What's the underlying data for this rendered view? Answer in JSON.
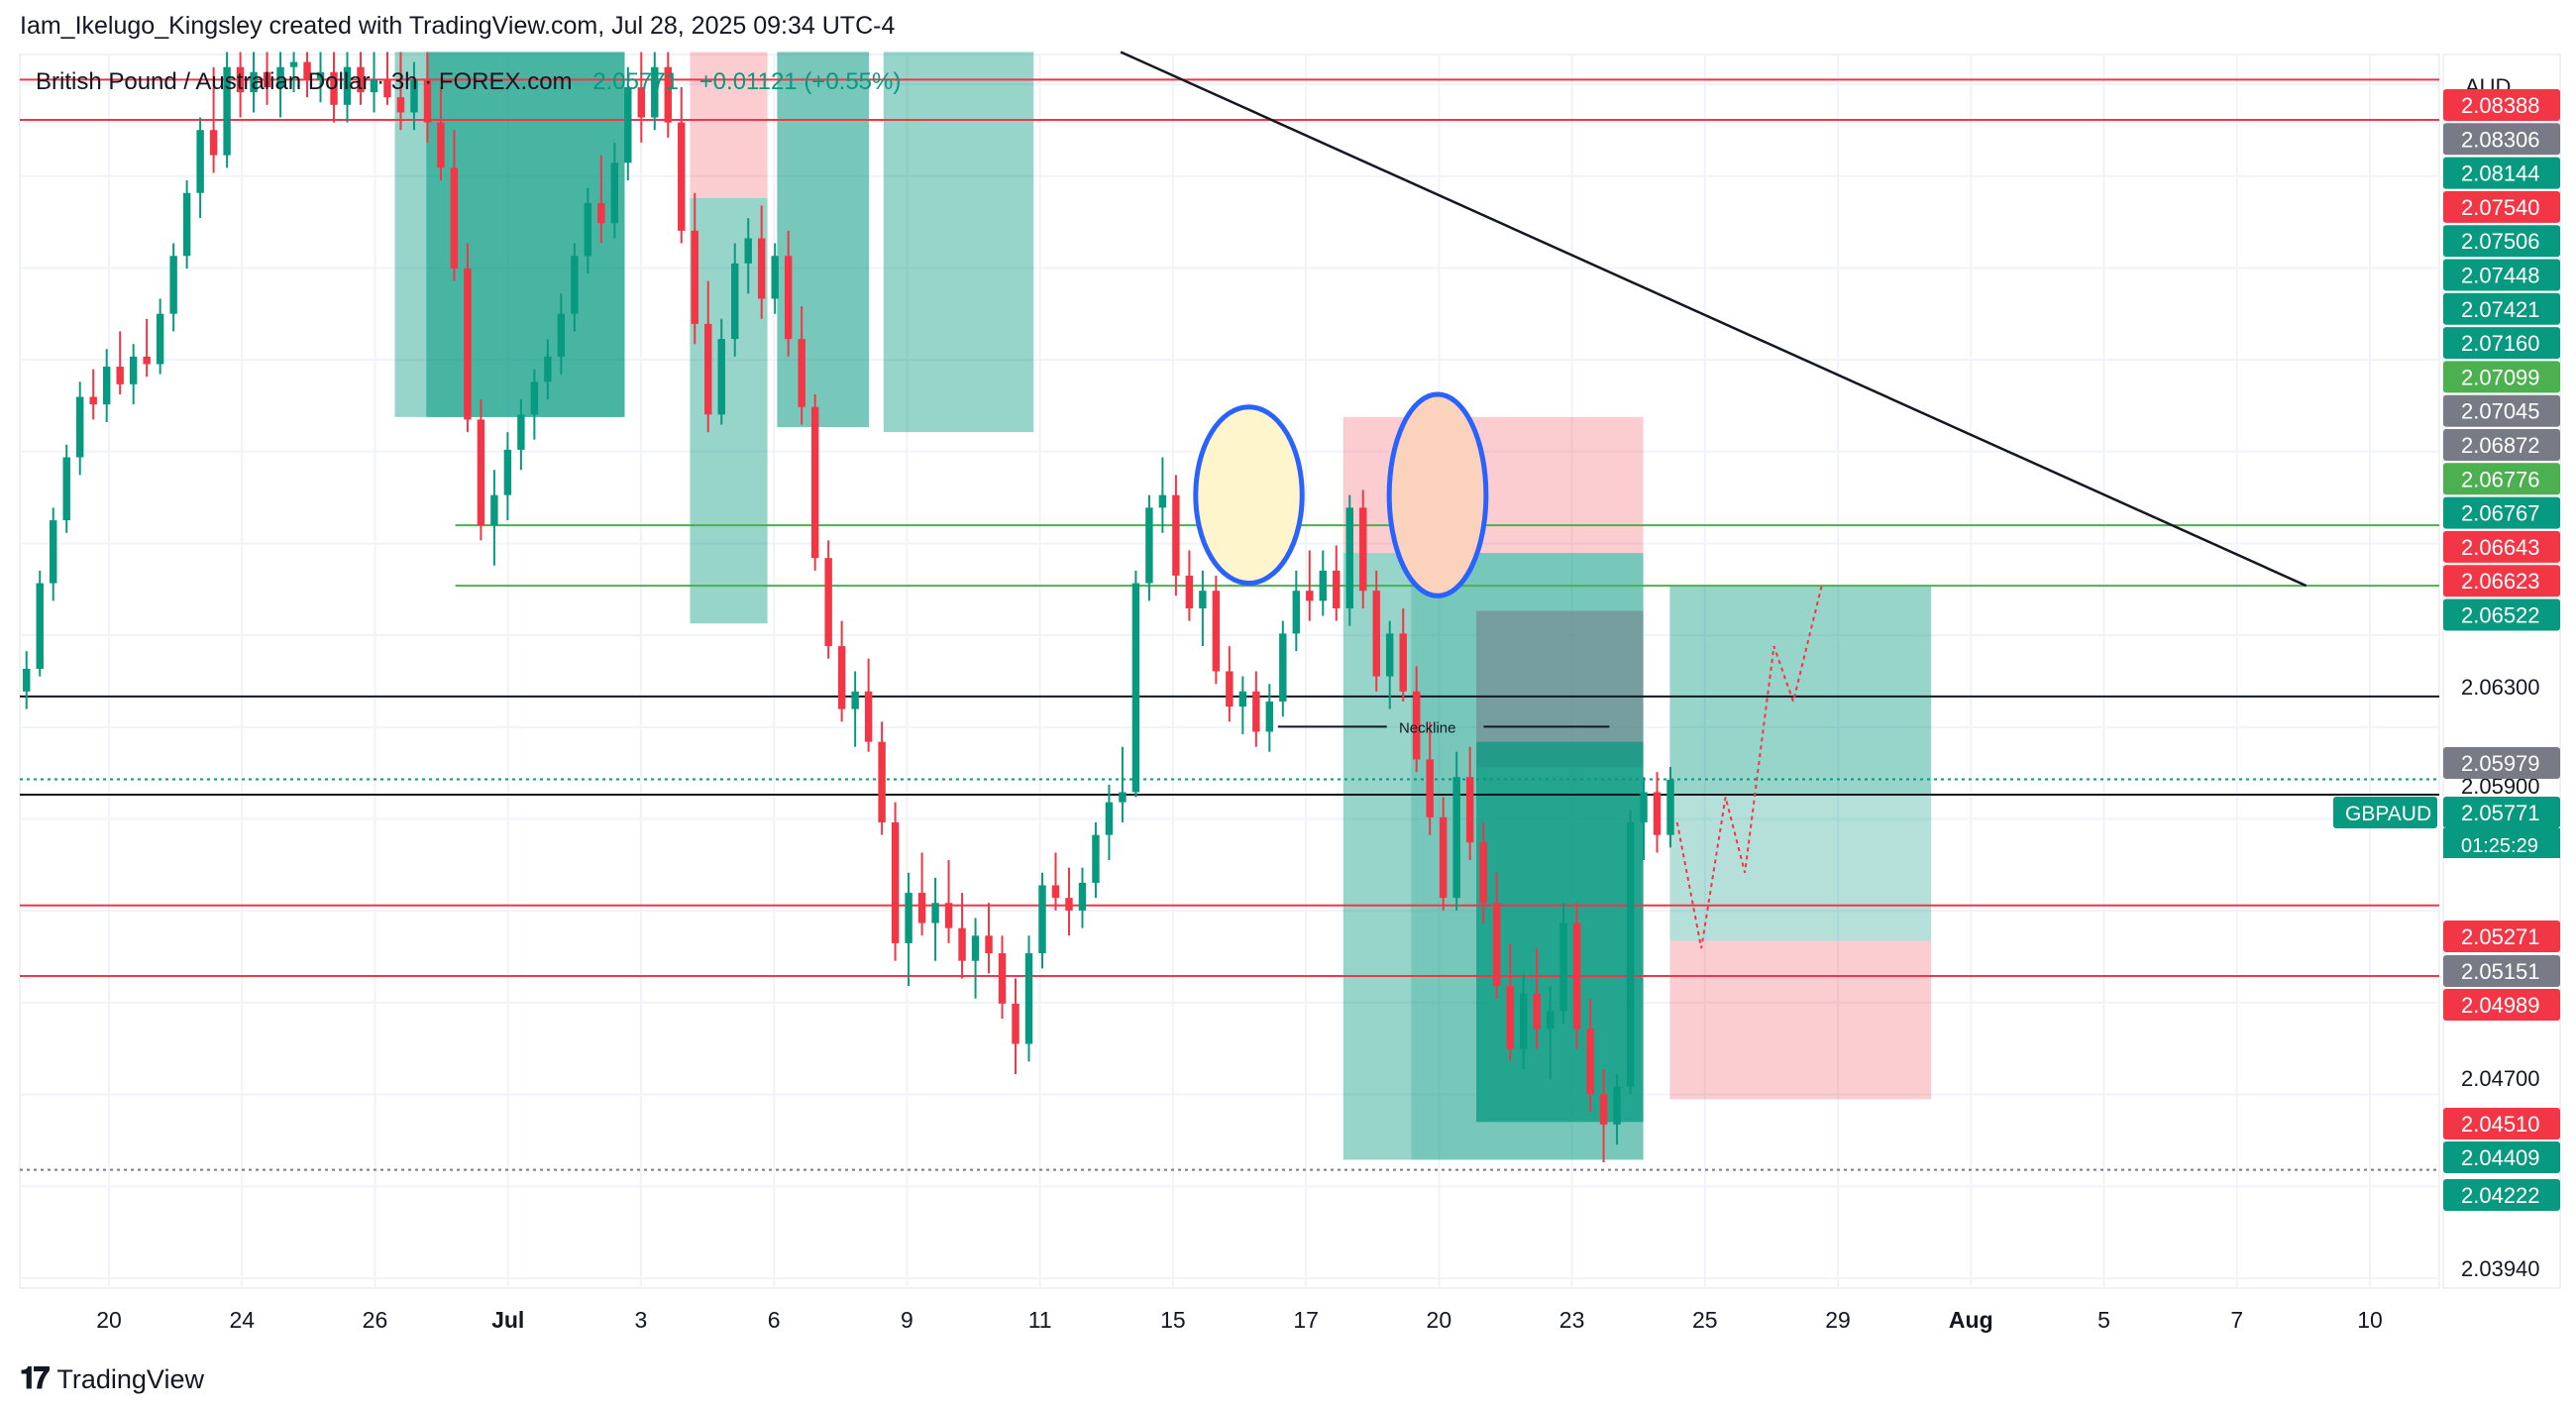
{
  "header": {
    "credit": "Iam_Ikelugo_Kingsley created with TradingView.com, Jul 28, 2025 09:34 UTC-4",
    "symbol_title": "British Pound / Australian Dollar · 3h · FOREX.com",
    "price": "2.05771",
    "change": "+0.01121 (+0.55%)"
  },
  "footer": {
    "brand": "TradingView",
    "logo_glyph": "𝟏𝟕"
  },
  "colors": {
    "bull": "#089981",
    "bear": "#f23645",
    "green_line": "#4caf50",
    "gray_tag": "#787b86",
    "axis_text": "#131722"
  },
  "chart_data": {
    "type": "candlestick",
    "symbol": "GBPAUD",
    "timeframe": "3h",
    "currency": "AUD",
    "y_range": [
      2.0375,
      2.0865
    ],
    "price_axis_ticks": [
      "2.06300",
      "2.05900",
      "2.04700",
      "2.03940"
    ],
    "x_ticks": [
      "20",
      "24",
      "26",
      "Jul",
      "3",
      "6",
      "9",
      "11",
      "15",
      "17",
      "20",
      "23",
      "25",
      "29",
      "Aug",
      "5",
      "7",
      "10"
    ],
    "price_tags": [
      {
        "label": "2.08388",
        "color": "#f23645"
      },
      {
        "label": "2.08306",
        "color": "#787b86"
      },
      {
        "label": "2.08144",
        "color": "#089981"
      },
      {
        "label": "2.07540",
        "color": "#f23645"
      },
      {
        "label": "2.07506",
        "color": "#089981"
      },
      {
        "label": "2.07448",
        "color": "#089981"
      },
      {
        "label": "2.07421",
        "color": "#089981"
      },
      {
        "label": "2.07160",
        "color": "#089981"
      },
      {
        "label": "2.07099",
        "color": "#4caf50"
      },
      {
        "label": "2.07045",
        "color": "#787b86"
      },
      {
        "label": "2.06872",
        "color": "#787b86"
      },
      {
        "label": "2.06776",
        "color": "#4caf50"
      },
      {
        "label": "2.06767",
        "color": "#089981"
      },
      {
        "label": "2.06643",
        "color": "#f23645"
      },
      {
        "label": "2.06623",
        "color": "#f23645"
      },
      {
        "label": "2.06522",
        "color": "#089981"
      },
      {
        "label": "2.05979",
        "color": "#787b86"
      },
      {
        "label": "2.05771",
        "color": "#089981"
      },
      {
        "label": "2.05271",
        "color": "#f23645"
      },
      {
        "label": "2.05151",
        "color": "#787b86"
      },
      {
        "label": "2.04989",
        "color": "#f23645"
      },
      {
        "label": "2.04510",
        "color": "#f23645"
      },
      {
        "label": "2.04409",
        "color": "#089981"
      },
      {
        "label": "2.04222",
        "color": "#089981"
      }
    ],
    "current_price_label": "GBPAUD",
    "countdown": "01:25:29",
    "annotations": [
      {
        "text": "Neckline",
        "price": 2.0598
      }
    ],
    "horizontal_lines": [
      {
        "price": 2.0855,
        "color": "#f23645"
      },
      {
        "price": 2.0839,
        "color": "#f23645"
      },
      {
        "price": 2.0678,
        "color": "#4caf50"
      },
      {
        "price": 2.0654,
        "color": "#4caf50"
      },
      {
        "price": 2.061,
        "color": "#131722"
      },
      {
        "price": 2.0571,
        "color": "#131722"
      },
      {
        "price": 2.0527,
        "color": "#f23645"
      },
      {
        "price": 2.0499,
        "color": "#f23645"
      }
    ],
    "trendline": {
      "from": [
        0.455,
        2.0866
      ],
      "to": [
        0.945,
        2.0654
      ]
    },
    "zones": [
      {
        "x": [
          0.155,
          0.25
        ],
        "price": [
          2.0866,
          2.0721
        ],
        "kind": "profit"
      },
      {
        "x": [
          0.168,
          0.25
        ],
        "price": [
          2.0866,
          2.0721
        ],
        "kind": "profit_dark"
      },
      {
        "x": [
          0.277,
          0.309
        ],
        "price": [
          2.0866,
          2.0808
        ],
        "kind": "loss"
      },
      {
        "x": [
          0.277,
          0.309
        ],
        "price": [
          2.0808,
          2.0639
        ],
        "kind": "profit"
      },
      {
        "x": [
          0.313,
          0.351
        ],
        "price": [
          2.0866,
          2.0717
        ],
        "kind": "profit_dark"
      },
      {
        "x": [
          0.357,
          0.419
        ],
        "price": [
          2.0866,
          2.0715
        ],
        "kind": "profit"
      },
      {
        "x": [
          0.547,
          0.671
        ],
        "price": [
          2.0721,
          2.0667
        ],
        "kind": "loss"
      },
      {
        "x": [
          0.547,
          0.575
        ],
        "price": [
          2.0667,
          2.0426
        ],
        "kind": "profit"
      },
      {
        "x": [
          0.575,
          0.671
        ],
        "price": [
          2.0667,
          2.0426
        ],
        "kind": "profit_dark"
      },
      {
        "x": [
          0.602,
          0.671
        ],
        "price": [
          2.0644,
          2.0582
        ],
        "kind": "neutral"
      },
      {
        "x": [
          0.602,
          0.671
        ],
        "price": [
          2.0592,
          2.0441
        ],
        "kind": "profit_darker"
      },
      {
        "x": [
          0.682,
          0.79
        ],
        "price": [
          2.0654,
          2.0571
        ],
        "kind": "profit"
      },
      {
        "x": [
          0.682,
          0.79
        ],
        "price": [
          2.0571,
          2.0513
        ],
        "kind": "profit_light"
      },
      {
        "x": [
          0.682,
          0.79
        ],
        "price": [
          2.0513,
          2.045
        ],
        "kind": "loss"
      }
    ],
    "ellipses": [
      {
        "cx": 0.508,
        "price": 2.069,
        "rx": 0.022,
        "ry": 0.0035,
        "fill": "#fff5cc"
      },
      {
        "cx": 0.586,
        "price": 2.069,
        "rx": 0.02,
        "ry": 0.004,
        "fill": "#fbd3bc"
      }
    ],
    "candles": [
      [
        2.0612,
        2.0628,
        2.0605,
        2.0621
      ],
      [
        2.0621,
        2.066,
        2.0618,
        2.0655
      ],
      [
        2.0655,
        2.0685,
        2.0648,
        2.068
      ],
      [
        2.068,
        2.071,
        2.0675,
        2.0705
      ],
      [
        2.0705,
        2.0735,
        2.0698,
        2.0729
      ],
      [
        2.0729,
        2.074,
        2.072,
        2.0726
      ],
      [
        2.0726,
        2.0748,
        2.0719,
        2.0741
      ],
      [
        2.0741,
        2.0755,
        2.073,
        2.0734
      ],
      [
        2.0734,
        2.075,
        2.0726,
        2.0745
      ],
      [
        2.0745,
        2.076,
        2.0737,
        2.0742
      ],
      [
        2.0742,
        2.0768,
        2.0738,
        2.0762
      ],
      [
        2.0762,
        2.079,
        2.0755,
        2.0785
      ],
      [
        2.0785,
        2.0815,
        2.078,
        2.081
      ],
      [
        2.081,
        2.084,
        2.08,
        2.0835
      ],
      [
        2.0835,
        2.086,
        2.0818,
        2.0825
      ],
      [
        2.0825,
        2.0866,
        2.082,
        2.086
      ],
      [
        2.086,
        2.0866,
        2.084,
        2.085
      ],
      [
        2.085,
        2.0866,
        2.0842,
        2.0858
      ],
      [
        2.0858,
        2.0866,
        2.0845,
        2.0852
      ],
      [
        2.0852,
        2.0866,
        2.084,
        2.086
      ],
      [
        2.086,
        2.0866,
        2.085,
        2.0862
      ],
      [
        2.0862,
        2.0866,
        2.0848,
        2.0855
      ],
      [
        2.0855,
        2.0866,
        2.0846,
        2.0858
      ],
      [
        2.0858,
        2.0866,
        2.0838,
        2.0845
      ],
      [
        2.0845,
        2.0866,
        2.0838,
        2.086
      ],
      [
        2.086,
        2.0866,
        2.0845,
        2.085
      ],
      [
        2.085,
        2.0866,
        2.0842,
        2.0855
      ],
      [
        2.0855,
        2.0866,
        2.0845,
        2.0848
      ],
      [
        2.0848,
        2.0866,
        2.0835,
        2.0842
      ],
      [
        2.0842,
        2.0862,
        2.0835,
        2.0855
      ],
      [
        2.0855,
        2.0866,
        2.083,
        2.0838
      ],
      [
        2.0838,
        2.0852,
        2.0815,
        2.082
      ],
      [
        2.082,
        2.0835,
        2.0775,
        2.078
      ],
      [
        2.078,
        2.079,
        2.0715,
        2.072
      ],
      [
        2.072,
        2.0728,
        2.0672,
        2.0678
      ],
      [
        2.0678,
        2.07,
        2.0662,
        2.069
      ],
      [
        2.069,
        2.0715,
        2.068,
        2.0708
      ],
      [
        2.0708,
        2.0728,
        2.07,
        2.0722
      ],
      [
        2.0722,
        2.074,
        2.0712,
        2.0735
      ],
      [
        2.0735,
        2.0752,
        2.0728,
        2.0745
      ],
      [
        2.0745,
        2.077,
        2.0738,
        2.0762
      ],
      [
        2.0762,
        2.079,
        2.0755,
        2.0785
      ],
      [
        2.0785,
        2.0812,
        2.0778,
        2.0806
      ],
      [
        2.0806,
        2.0825,
        2.079,
        2.0798
      ],
      [
        2.0798,
        2.083,
        2.0792,
        2.0822
      ],
      [
        2.0822,
        2.086,
        2.0815,
        2.0852
      ],
      [
        2.0852,
        2.0866,
        2.083,
        2.084
      ],
      [
        2.084,
        2.0866,
        2.0835,
        2.086
      ],
      [
        2.086,
        2.0866,
        2.0832,
        2.0838
      ],
      [
        2.0838,
        2.0852,
        2.079,
        2.0795
      ],
      [
        2.0795,
        2.081,
        2.075,
        2.0758
      ],
      [
        2.0758,
        2.0775,
        2.0715,
        2.0722
      ],
      [
        2.0722,
        2.076,
        2.0718,
        2.0752
      ],
      [
        2.0752,
        2.079,
        2.0745,
        2.0782
      ],
      [
        2.0782,
        2.08,
        2.077,
        2.0792
      ],
      [
        2.0792,
        2.0805,
        2.076,
        2.0768
      ],
      [
        2.0768,
        2.079,
        2.0762,
        2.0785
      ],
      [
        2.0785,
        2.0795,
        2.0745,
        2.0752
      ],
      [
        2.0752,
        2.0765,
        2.0718,
        2.0725
      ],
      [
        2.0725,
        2.073,
        2.066,
        2.0665
      ],
      [
        2.0665,
        2.0672,
        2.0625,
        2.063
      ],
      [
        2.063,
        2.064,
        2.06,
        2.0605
      ],
      [
        2.0605,
        2.062,
        2.059,
        2.0612
      ],
      [
        2.0612,
        2.0625,
        2.0588,
        2.0592
      ],
      [
        2.0592,
        2.06,
        2.0555,
        2.056
      ],
      [
        2.056,
        2.0568,
        2.0505,
        2.0512
      ],
      [
        2.0512,
        2.054,
        2.0495,
        2.0532
      ],
      [
        2.0532,
        2.0548,
        2.0515,
        2.052
      ],
      [
        2.052,
        2.0538,
        2.0505,
        2.0528
      ],
      [
        2.0528,
        2.0545,
        2.0512,
        2.0518
      ],
      [
        2.0518,
        2.0532,
        2.0498,
        2.0505
      ],
      [
        2.0505,
        2.0522,
        2.049,
        2.0515
      ],
      [
        2.0515,
        2.0528,
        2.05,
        2.0508
      ],
      [
        2.0508,
        2.0515,
        2.0482,
        2.0488
      ],
      [
        2.0488,
        2.0498,
        2.046,
        2.0472
      ],
      [
        2.0472,
        2.0515,
        2.0465,
        2.0508
      ],
      [
        2.0508,
        2.054,
        2.0502,
        2.0535
      ],
      [
        2.0535,
        2.0548,
        2.0525,
        2.053
      ],
      [
        2.053,
        2.0542,
        2.0515,
        2.0525
      ],
      [
        2.0525,
        2.0542,
        2.0518,
        2.0536
      ],
      [
        2.0536,
        2.056,
        2.053,
        2.0555
      ],
      [
        2.0555,
        2.0575,
        2.0545,
        2.0568
      ],
      [
        2.0568,
        2.059,
        2.056,
        2.0572
      ],
      [
        2.0572,
        2.066,
        2.057,
        2.0655
      ],
      [
        2.0655,
        2.069,
        2.0648,
        2.0685
      ],
      [
        2.0685,
        2.0705,
        2.0675,
        2.069
      ],
      [
        2.069,
        2.0698,
        2.065,
        2.0658
      ],
      [
        2.0658,
        2.0668,
        2.064,
        2.0645
      ],
      [
        2.0645,
        2.066,
        2.063,
        2.0652
      ],
      [
        2.0652,
        2.0658,
        2.0615,
        2.062
      ],
      [
        2.062,
        2.063,
        2.06,
        2.0606
      ],
      [
        2.0606,
        2.0618,
        2.0595,
        2.0612
      ],
      [
        2.0612,
        2.062,
        2.059,
        2.0596
      ],
      [
        2.0596,
        2.0615,
        2.0588,
        2.0608
      ],
      [
        2.0608,
        2.064,
        2.0602,
        2.0635
      ],
      [
        2.0635,
        2.066,
        2.0628,
        2.0652
      ],
      [
        2.0652,
        2.0668,
        2.064,
        2.0648
      ],
      [
        2.0648,
        2.0668,
        2.0642,
        2.066
      ],
      [
        2.066,
        2.067,
        2.064,
        2.0645
      ],
      [
        2.0645,
        2.069,
        2.0638,
        2.0685
      ],
      [
        2.0685,
        2.0692,
        2.0645,
        2.0652
      ],
      [
        2.0652,
        2.066,
        2.0612,
        2.0618
      ],
      [
        2.0618,
        2.064,
        2.0605,
        2.0635
      ],
      [
        2.0635,
        2.0645,
        2.0608,
        2.0612
      ],
      [
        2.0612,
        2.0622,
        2.058,
        2.0585
      ],
      [
        2.0585,
        2.06,
        2.0555,
        2.0562
      ],
      [
        2.0562,
        2.057,
        2.0525,
        2.053
      ],
      [
        2.053,
        2.0588,
        2.0525,
        2.0578
      ],
      [
        2.0578,
        2.059,
        2.0545,
        2.0552
      ],
      [
        2.0552,
        2.056,
        2.052,
        2.0528
      ],
      [
        2.0528,
        2.054,
        2.049,
        2.0495
      ],
      [
        2.0495,
        2.0512,
        2.0465,
        2.047
      ],
      [
        2.047,
        2.05,
        2.0462,
        2.0492
      ],
      [
        2.0492,
        2.051,
        2.047,
        2.0478
      ],
      [
        2.0478,
        2.0495,
        2.0458,
        2.0485
      ],
      [
        2.0485,
        2.0528,
        2.048,
        2.052
      ],
      [
        2.052,
        2.0528,
        2.047,
        2.0478
      ],
      [
        2.0478,
        2.049,
        2.0445,
        2.0452
      ],
      [
        2.0452,
        2.0462,
        2.0425,
        2.044
      ],
      [
        2.044,
        2.046,
        2.0432,
        2.0455
      ],
      [
        2.0455,
        2.0565,
        2.0452,
        2.056
      ],
      [
        2.056,
        2.0578,
        2.0545,
        2.0572
      ],
      [
        2.0572,
        2.058,
        2.0548,
        2.0555
      ],
      [
        2.0555,
        2.0582,
        2.055,
        2.0577
      ]
    ]
  }
}
